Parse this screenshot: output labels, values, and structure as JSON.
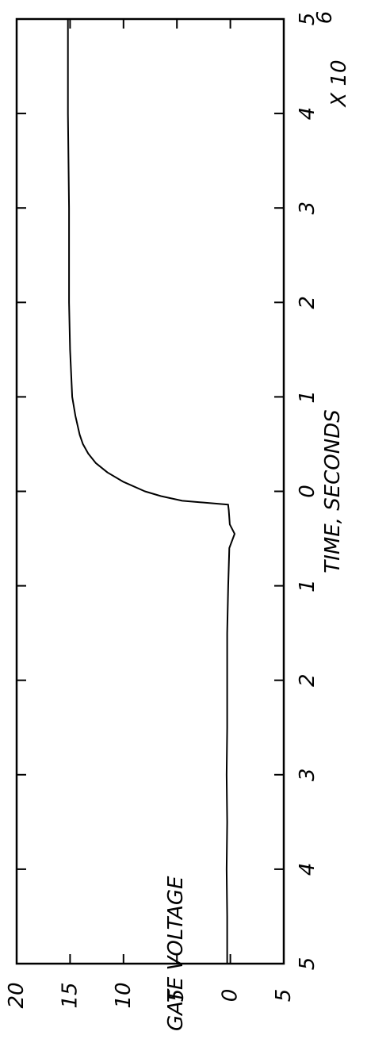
{
  "chart_data": {
    "type": "line",
    "xlabel": "TIME, SECONDS",
    "ylabel": "GATE VOLTAGE",
    "x_multiplier": "X 10",
    "x_multiplier_exponent": "6",
    "xlim": [
      -5,
      5
    ],
    "ylim": [
      -5,
      20
    ],
    "x_tick_labels": [
      "5",
      "4",
      "3",
      "2",
      "1",
      "0",
      "1",
      "2",
      "3",
      "4",
      "5"
    ],
    "y_tick_labels": [
      "5",
      "0",
      "5",
      "10",
      "15",
      "20"
    ],
    "y_ticks": [
      -5,
      0,
      5,
      10,
      15,
      20
    ],
    "series": [
      {
        "x": [
          -5,
          -4.5,
          -4,
          -3.5,
          -3,
          -2.5,
          -2,
          -1.5,
          -1,
          -0.6,
          -0.45,
          -0.35,
          -0.2,
          -0.15,
          -0.14,
          -0.1,
          -0.05,
          0,
          0.1,
          0.2,
          0.3,
          0.4,
          0.5,
          0.6,
          0.8,
          1,
          1.5,
          2,
          3,
          4,
          5
        ],
        "y": [
          0.3,
          0.3,
          0.35,
          0.3,
          0.35,
          0.3,
          0.3,
          0.3,
          0.2,
          0.1,
          -0.4,
          0.05,
          0.15,
          0.2,
          0.2,
          4.5,
          6.5,
          8,
          10,
          11.5,
          12.6,
          13.3,
          13.8,
          14.1,
          14.5,
          14.8,
          15,
          15.1,
          15.1,
          15.2,
          15.2
        ]
      }
    ],
    "grid": false
  }
}
